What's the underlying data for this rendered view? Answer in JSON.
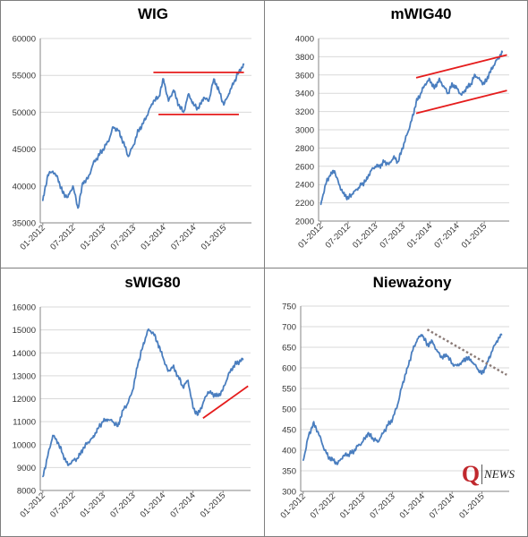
{
  "logo": {
    "mark": "Q",
    "text": "NEWS"
  },
  "colors": {
    "series": "#4a7ebf",
    "trend": "#e51c1c",
    "trend_dotted": "#8b7b77",
    "grid": "#d9d9d9",
    "axis": "#868686"
  },
  "chart_data": [
    {
      "type": "line",
      "title": "WIG",
      "ylim": [
        35000,
        60000
      ],
      "yticks": [
        35000,
        40000,
        45000,
        50000,
        55000,
        60000
      ],
      "xticks": [
        "01-2012",
        "07-2012",
        "01-2013",
        "07-2013",
        "01-2014",
        "07-2014",
        "01-2015"
      ],
      "grid": "horizontal",
      "x": [
        "2012-01",
        "2012-02",
        "2012-03",
        "2012-04",
        "2012-05",
        "2012-06",
        "2012-07",
        "2012-08",
        "2012-09",
        "2012-10",
        "2012-11",
        "2012-12",
        "2013-01",
        "2013-02",
        "2013-03",
        "2013-04",
        "2013-05",
        "2013-06",
        "2013-07",
        "2013-08",
        "2013-09",
        "2013-10",
        "2013-11",
        "2013-12",
        "2014-01",
        "2014-02",
        "2014-03",
        "2014-04",
        "2014-05",
        "2014-06",
        "2014-07",
        "2014-08",
        "2014-09",
        "2014-10",
        "2014-11",
        "2014-12",
        "2015-01",
        "2015-02",
        "2015-03",
        "2015-04",
        "2015-05"
      ],
      "series": [
        {
          "values": [
            38000,
            41500,
            42000,
            41000,
            39000,
            38500,
            40000,
            37000,
            40500,
            41000,
            43000,
            44000,
            45000,
            46000,
            48000,
            47500,
            46000,
            44000,
            45500,
            47500,
            48500,
            50000,
            51500,
            52000,
            54500,
            51500,
            53000,
            51000,
            50000,
            52500,
            51000,
            50500,
            52000,
            51500,
            54500,
            53000,
            51000,
            52500,
            54000,
            55500,
            56500
          ]
        }
      ],
      "trendlines": [
        {
          "style": "solid",
          "from": [
            "2013-11",
            55400
          ],
          "to": [
            "2015-05",
            55400
          ]
        },
        {
          "style": "solid",
          "from": [
            "2013-12",
            49700
          ],
          "to": [
            "2015-04",
            49700
          ]
        }
      ]
    },
    {
      "type": "line",
      "title": "mWIG40",
      "ylim": [
        2000,
        4000
      ],
      "yticks": [
        2000,
        2200,
        2400,
        2600,
        2800,
        3000,
        3200,
        3400,
        3600,
        3800,
        4000
      ],
      "xticks": [
        "01-2012",
        "07-2012",
        "01-2013",
        "07-2013",
        "01-2014",
        "07-2014",
        "01-2015"
      ],
      "grid": "horizontal",
      "x": [
        "2012-01",
        "2012-02",
        "2012-03",
        "2012-04",
        "2012-05",
        "2012-06",
        "2012-07",
        "2012-08",
        "2012-09",
        "2012-10",
        "2012-11",
        "2012-12",
        "2013-01",
        "2013-02",
        "2013-03",
        "2013-04",
        "2013-05",
        "2013-06",
        "2013-07",
        "2013-08",
        "2013-09",
        "2013-10",
        "2013-11",
        "2013-12",
        "2014-01",
        "2014-02",
        "2014-03",
        "2014-04",
        "2014-05",
        "2014-06",
        "2014-07",
        "2014-08",
        "2014-09",
        "2014-10",
        "2014-11",
        "2014-12",
        "2015-01",
        "2015-02",
        "2015-03",
        "2015-04",
        "2015-05"
      ],
      "series": [
        {
          "values": [
            2180,
            2400,
            2500,
            2550,
            2400,
            2300,
            2250,
            2300,
            2350,
            2400,
            2450,
            2550,
            2600,
            2600,
            2650,
            2620,
            2700,
            2650,
            2800,
            2950,
            3100,
            3300,
            3400,
            3500,
            3550,
            3450,
            3550,
            3480,
            3400,
            3500,
            3450,
            3380,
            3450,
            3500,
            3600,
            3550,
            3500,
            3600,
            3700,
            3780,
            3850
          ]
        }
      ],
      "trendlines": [
        {
          "style": "solid",
          "from": [
            "2013-10",
            3570
          ],
          "to": [
            "2015-06",
            3820
          ]
        },
        {
          "style": "solid",
          "from": [
            "2013-10",
            3180
          ],
          "to": [
            "2015-06",
            3430
          ]
        }
      ]
    },
    {
      "type": "line",
      "title": "sWIG80",
      "ylim": [
        8000,
        16000
      ],
      "yticks": [
        8000,
        9000,
        10000,
        11000,
        12000,
        13000,
        14000,
        15000,
        16000
      ],
      "xticks": [
        "01-2012",
        "07-2012",
        "01-2013",
        "07-2013",
        "01-2014",
        "07-2014",
        "01-2015"
      ],
      "grid": "horizontal",
      "x": [
        "2012-01",
        "2012-02",
        "2012-03",
        "2012-04",
        "2012-05",
        "2012-06",
        "2012-07",
        "2012-08",
        "2012-09",
        "2012-10",
        "2012-11",
        "2012-12",
        "2013-01",
        "2013-02",
        "2013-03",
        "2013-04",
        "2013-05",
        "2013-06",
        "2013-07",
        "2013-08",
        "2013-09",
        "2013-10",
        "2013-11",
        "2013-12",
        "2014-01",
        "2014-02",
        "2014-03",
        "2014-04",
        "2014-05",
        "2014-06",
        "2014-07",
        "2014-08",
        "2014-09",
        "2014-10",
        "2014-11",
        "2014-12",
        "2015-01",
        "2015-02",
        "2015-03",
        "2015-04",
        "2015-05"
      ],
      "series": [
        {
          "values": [
            8600,
            9500,
            10400,
            10100,
            9600,
            9100,
            9300,
            9400,
            9800,
            10100,
            10300,
            10700,
            11000,
            11100,
            11000,
            10800,
            11500,
            11800,
            12400,
            13500,
            14300,
            15000,
            14900,
            14400,
            13800,
            13200,
            13400,
            13000,
            12500,
            12800,
            11600,
            11300,
            11800,
            12300,
            12200,
            12100,
            12400,
            13000,
            13400,
            13600,
            13700
          ]
        }
      ],
      "trendlines": [
        {
          "style": "solid",
          "from": [
            "2014-09",
            11150
          ],
          "to": [
            "2015-06",
            12550
          ]
        }
      ]
    },
    {
      "type": "line",
      "title": "Nieważony",
      "ylim": [
        300,
        750
      ],
      "yticks": [
        300,
        350,
        400,
        450,
        500,
        550,
        600,
        650,
        700,
        750
      ],
      "xticks": [
        "01-2012",
        "07-2012",
        "01-2013",
        "07-2013",
        "01-2014",
        "07-2014",
        "01-2015"
      ],
      "grid": "horizontal",
      "x": [
        "2012-01",
        "2012-02",
        "2012-03",
        "2012-04",
        "2012-05",
        "2012-06",
        "2012-07",
        "2012-08",
        "2012-09",
        "2012-10",
        "2012-11",
        "2012-12",
        "2013-01",
        "2013-02",
        "2013-03",
        "2013-04",
        "2013-05",
        "2013-06",
        "2013-07",
        "2013-08",
        "2013-09",
        "2013-10",
        "2013-11",
        "2013-12",
        "2014-01",
        "2014-02",
        "2014-03",
        "2014-04",
        "2014-05",
        "2014-06",
        "2014-07",
        "2014-08",
        "2014-09",
        "2014-10",
        "2014-11",
        "2014-12",
        "2015-01",
        "2015-02",
        "2015-03",
        "2015-04",
        "2015-05"
      ],
      "series": [
        {
          "values": [
            375,
            430,
            465,
            445,
            410,
            385,
            375,
            368,
            385,
            390,
            395,
            410,
            420,
            440,
            430,
            420,
            440,
            460,
            475,
            510,
            560,
            600,
            640,
            670,
            680,
            655,
            665,
            640,
            625,
            630,
            610,
            605,
            615,
            625,
            615,
            600,
            585,
            610,
            640,
            665,
            680
          ]
        }
      ],
      "trendlines": [
        {
          "style": "dotted",
          "from": [
            "2014-02",
            693
          ],
          "to": [
            "2015-06",
            583
          ]
        }
      ]
    }
  ]
}
